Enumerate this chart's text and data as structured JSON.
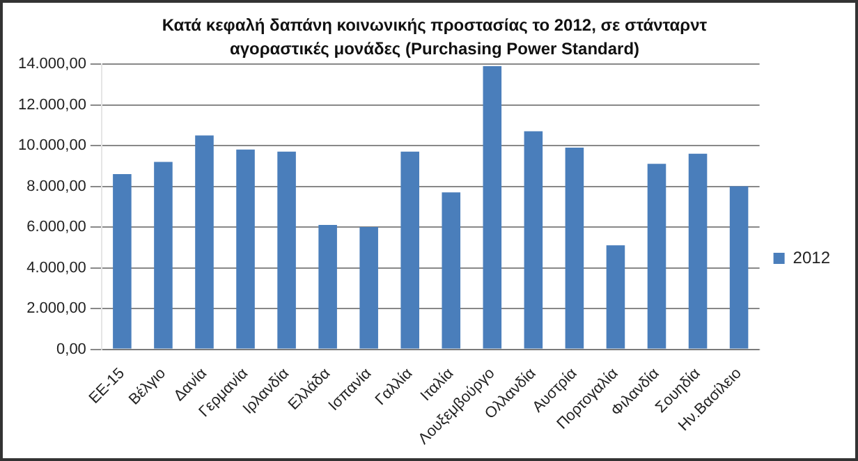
{
  "chart_data": {
    "type": "bar",
    "title": "Κατά κεφαλή δαπάνη κοινωνικής προστασίας το 2012, σε στάνταρντ αγοραστικές μονάδες (Purchasing Power Standard)",
    "categories": [
      "ΕΕ-15",
      "Βέλγιο",
      "Δανία",
      "Γερμανία",
      "Ιρλανδία",
      "Ελλάδα",
      "Ισπανία",
      "Γαλλία",
      "Ιταλία",
      "Λουξεμβούργο",
      "Ολλανδία",
      "Αυστρία",
      "Πορτογαλία",
      "Φιλανδία",
      "Σουηδία",
      "Ην.Βασίλειο"
    ],
    "series": [
      {
        "name": "2012",
        "color": "#4a7ebb",
        "values": [
          8600,
          9200,
          10500,
          9800,
          9700,
          6100,
          6000,
          9700,
          7700,
          13900,
          10700,
          9900,
          5100,
          9100,
          9600,
          8000
        ]
      }
    ],
    "ylim": [
      0,
      14000
    ],
    "yticks": [
      {
        "value": 0,
        "label": "0,00"
      },
      {
        "value": 2000,
        "label": "2.000,00"
      },
      {
        "value": 4000,
        "label": "4.000,00"
      },
      {
        "value": 6000,
        "label": "6.000,00"
      },
      {
        "value": 8000,
        "label": "8.000,00"
      },
      {
        "value": 10000,
        "label": "10.000,00"
      },
      {
        "value": 12000,
        "label": "12.000,00"
      },
      {
        "value": 14000,
        "label": "14.000,00"
      }
    ],
    "grid": "y",
    "legend": "right"
  }
}
